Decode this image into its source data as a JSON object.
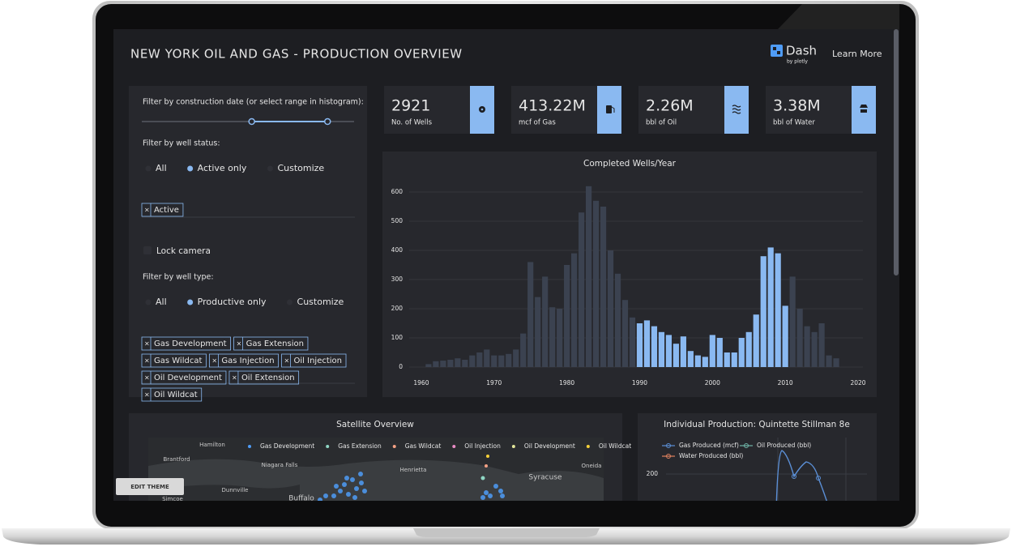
{
  "header": {
    "title": "NEW YORK OIL AND GAS - PRODUCTION OVERVIEW",
    "logo": "Dash",
    "logo_sub": "by plotly",
    "link": "Learn More"
  },
  "controls": {
    "date_label": "Filter by construction date (or select range in histogram):",
    "status_label": "Filter by well status:",
    "status_options": [
      "All",
      "Active only",
      "Customize"
    ],
    "status_selected": 1,
    "status_tags": [
      "Active"
    ],
    "remove_icon": "×",
    "lock_camera": "Lock camera",
    "type_label": "Filter by well type:",
    "type_options": [
      "All",
      "Productive only",
      "Customize"
    ],
    "type_selected": 1,
    "type_tags": [
      "Gas Development",
      "Gas Extension",
      "Gas Wildcat",
      "Gas Injection",
      "Oil Injection",
      "Oil Development",
      "Oil Extension",
      "Oil Wildcat"
    ]
  },
  "stats": [
    {
      "value": "2921",
      "label": "No. of Wells"
    },
    {
      "value": "413.22M",
      "label": "mcf of Gas"
    },
    {
      "value": "2.26M",
      "label": "bbl of Oil"
    },
    {
      "value": "3.38M",
      "label": "bbl of Water"
    }
  ],
  "chart_data": {
    "type": "bar",
    "title": "Completed Wells/Year",
    "x": [
      1961,
      1962,
      1963,
      1964,
      1965,
      1966,
      1967,
      1968,
      1969,
      1970,
      1971,
      1972,
      1973,
      1974,
      1975,
      1976,
      1977,
      1978,
      1979,
      1980,
      1981,
      1982,
      1983,
      1984,
      1985,
      1986,
      1987,
      1988,
      1989,
      1990,
      1991,
      1992,
      1993,
      1994,
      1995,
      1996,
      1997,
      1998,
      1999,
      2000,
      2001,
      2002,
      2003,
      2004,
      2005,
      2006,
      2007,
      2008,
      2009,
      2010,
      2011,
      2012,
      2013,
      2014,
      2015,
      2016,
      2017
    ],
    "values": [
      10,
      20,
      22,
      25,
      30,
      25,
      40,
      50,
      60,
      40,
      40,
      45,
      60,
      115,
      360,
      240,
      310,
      205,
      200,
      350,
      390,
      530,
      620,
      570,
      550,
      400,
      320,
      230,
      170,
      150,
      160,
      140,
      120,
      110,
      80,
      105,
      55,
      40,
      35,
      110,
      100,
      50,
      50,
      100,
      120,
      180,
      380,
      410,
      390,
      210,
      310,
      200,
      140,
      120,
      150,
      40,
      30
    ],
    "color": "#3b4250",
    "selected_color": "#8ab9f1",
    "selected": [
      1990,
      2010
    ],
    "xlim": [
      1955,
      2021
    ],
    "xticks": [
      1960,
      1970,
      1980,
      1990,
      2000,
      2010,
      2020
    ],
    "ylim": [
      0,
      650
    ],
    "yticks": [
      0,
      100,
      200,
      300,
      400,
      500,
      600
    ],
    "grid": true
  },
  "map": {
    "title": "Satellite Overview",
    "legend": [
      {
        "name": "Gas Development",
        "color": "#4f9cf7"
      },
      {
        "name": "Gas Extension",
        "color": "#8fd6c4"
      },
      {
        "name": "Gas Wildcat",
        "color": "#f4a184"
      },
      {
        "name": "Oil Injection",
        "color": "#e88bc4"
      },
      {
        "name": "Oil Development",
        "color": "#e2e69a"
      },
      {
        "name": "Oil Wildcat",
        "color": "#f5cf38"
      }
    ],
    "places": [
      "Hamilton",
      "Brantford",
      "Niagara Falls",
      "Henrietta",
      "Syracuse",
      "Oneida",
      "Dunnville",
      "Buffalo",
      "Simcoe"
    ]
  },
  "production": {
    "title": "Individual Production: Quintette Stillman 8e",
    "legend": [
      {
        "name": "Gas Produced (mcf)",
        "color": "#5b8fd6"
      },
      {
        "name": "Oil Produced (bbl)",
        "color": "#6fb5a8"
      },
      {
        "name": "Water Produced (bbl)",
        "color": "#e0825f"
      }
    ],
    "yticks": [
      200
    ]
  },
  "button": "EDIT THEME"
}
